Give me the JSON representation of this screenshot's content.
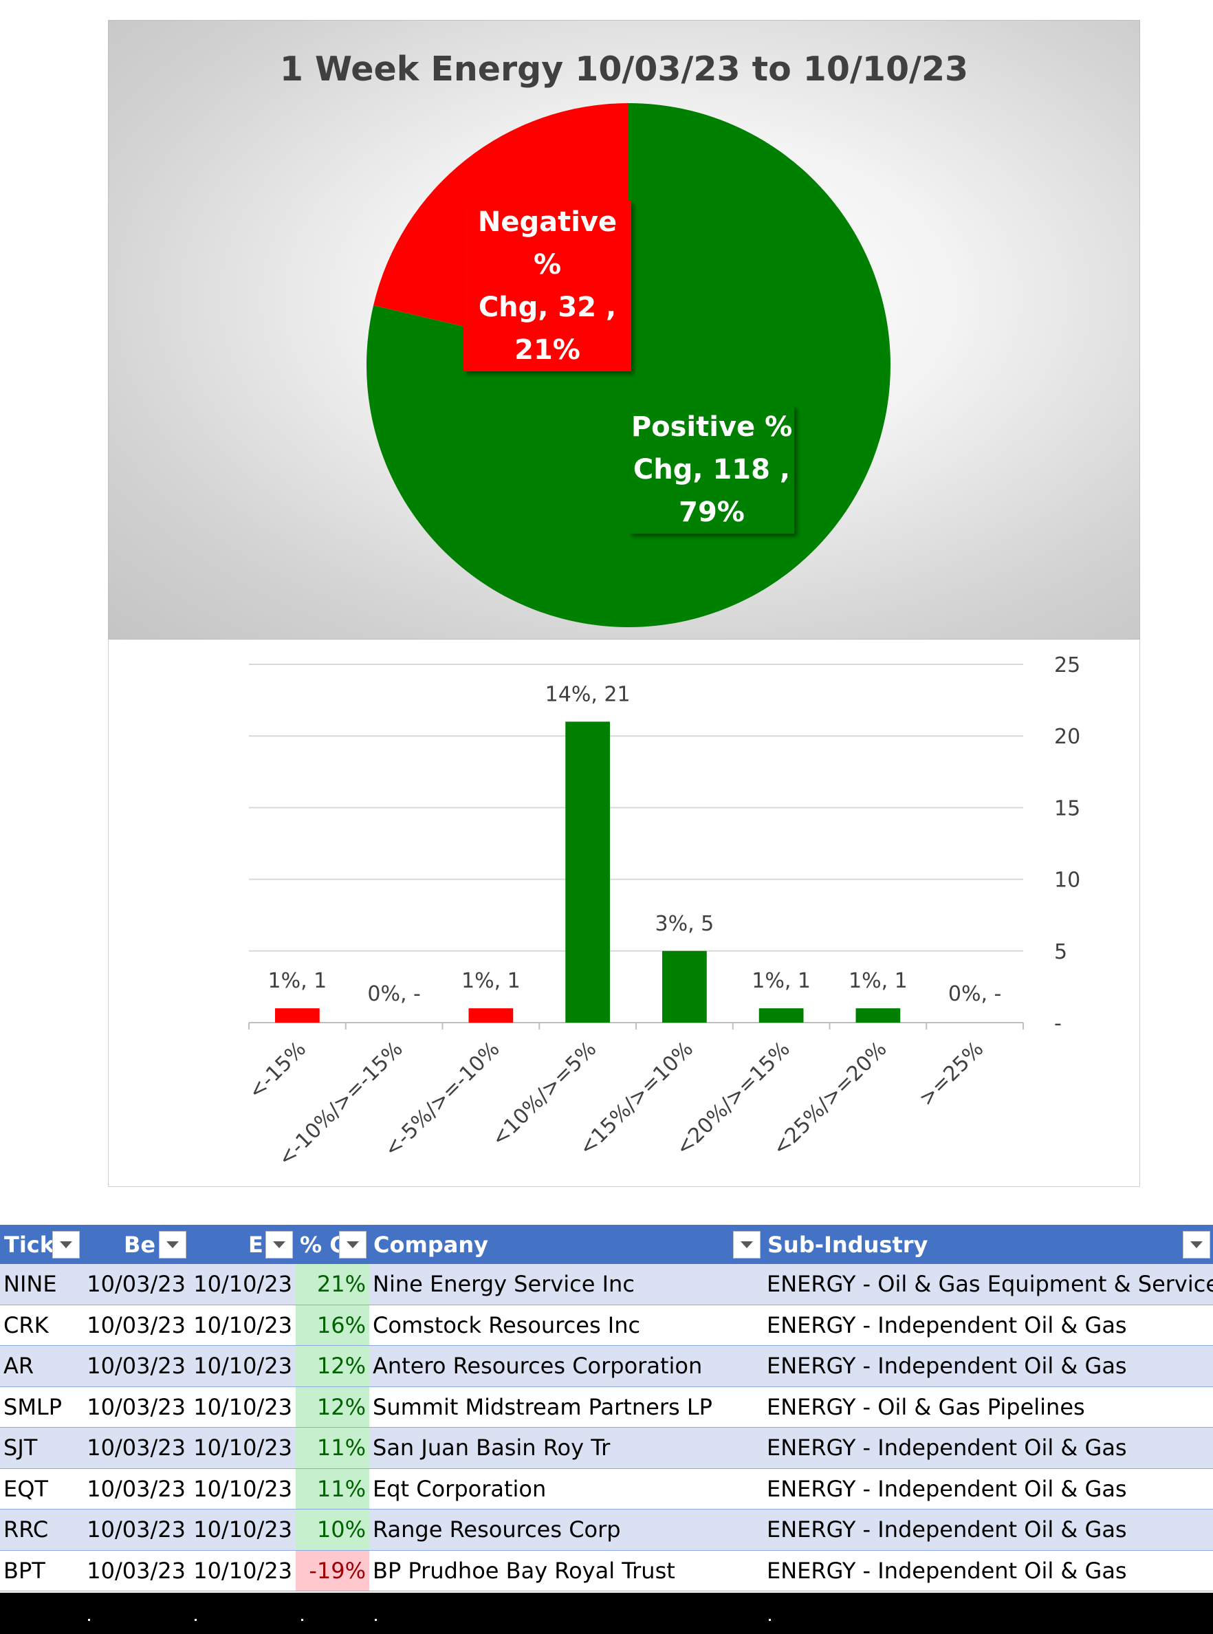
{
  "chart_data": [
    {
      "type": "pie",
      "title": "1 Week Energy 10/03/23 to 10/10/23",
      "slices": [
        {
          "name": "Positive % Chg",
          "value": 118,
          "percent": "79%",
          "color": "#008000"
        },
        {
          "name": "Negative % Chg",
          "value": 32,
          "percent": "21%",
          "color": "#ff0000"
        }
      ],
      "labels": [
        {
          "line1": "Negative %",
          "line2": "Chg,  32 ,",
          "line3": "21%"
        },
        {
          "line1": "Positive %",
          "line2": "Chg,  118 ,",
          "line3": "79%"
        }
      ]
    },
    {
      "type": "bar",
      "categories": [
        "<-15%",
        "<-10%/>=-15%",
        "<-5%/>=-10%",
        "<10%/>=5%",
        "<15%/>=10%",
        "<20%/>=15%",
        "<25%/>=20%",
        ">=25%"
      ],
      "values": [
        1,
        0,
        1,
        21,
        5,
        1,
        1,
        0
      ],
      "data_labels": [
        "1%,  1",
        "0%,  -",
        "1%,  1",
        "14%,  21",
        "3%,  5",
        "1%,  1",
        "1%,  1",
        "0%,  -"
      ],
      "colors": [
        "#ff0000",
        "#ff0000",
        "#ff0000",
        "#008000",
        "#008000",
        "#008000",
        "#008000",
        "#008000"
      ],
      "ylim": [
        0,
        25
      ],
      "yticks": [
        0,
        5,
        10,
        15,
        20,
        25
      ],
      "ytick_labels": [
        "-",
        "5",
        "10",
        "15",
        "20",
        "25"
      ],
      "y_axis_side": "right",
      "grid": true
    }
  ],
  "table": {
    "headers": [
      {
        "label": "Tick"
      },
      {
        "label": "Be"
      },
      {
        "label": "E"
      },
      {
        "label": "% C"
      },
      {
        "label": "Company"
      },
      {
        "label": "Sub-Industry"
      }
    ],
    "rows": [
      {
        "ticker": "NINE",
        "begin": "10/03/23",
        "end": "10/10/23",
        "pct": "21%",
        "company": "Nine Energy Service Inc",
        "sub": "ENERGY - Oil & Gas Equipment & Services"
      },
      {
        "ticker": "CRK",
        "begin": "10/03/23",
        "end": "10/10/23",
        "pct": "16%",
        "company": "Comstock Resources Inc",
        "sub": "ENERGY - Independent Oil & Gas"
      },
      {
        "ticker": "AR",
        "begin": "10/03/23",
        "end": "10/10/23",
        "pct": "12%",
        "company": "Antero Resources Corporation",
        "sub": "ENERGY - Independent Oil & Gas"
      },
      {
        "ticker": "SMLP",
        "begin": "10/03/23",
        "end": "10/10/23",
        "pct": "12%",
        "company": "Summit Midstream Partners LP",
        "sub": "ENERGY - Oil & Gas Pipelines"
      },
      {
        "ticker": "SJT",
        "begin": "10/03/23",
        "end": "10/10/23",
        "pct": "11%",
        "company": "San Juan Basin Roy Tr",
        "sub": "ENERGY - Independent Oil & Gas"
      },
      {
        "ticker": "EQT",
        "begin": "10/03/23",
        "end": "10/10/23",
        "pct": "11%",
        "company": "Eqt Corporation",
        "sub": "ENERGY - Independent Oil & Gas"
      },
      {
        "ticker": "RRC",
        "begin": "10/03/23",
        "end": "10/10/23",
        "pct": "10%",
        "company": "Range Resources Corp",
        "sub": "ENERGY - Independent Oil & Gas"
      },
      {
        "ticker": "BPT",
        "begin": "10/03/23",
        "end": "10/10/23",
        "pct": "-19%",
        "company": "BP Prudhoe Bay Royal Trust",
        "sub": "ENERGY - Independent Oil & Gas"
      }
    ]
  }
}
